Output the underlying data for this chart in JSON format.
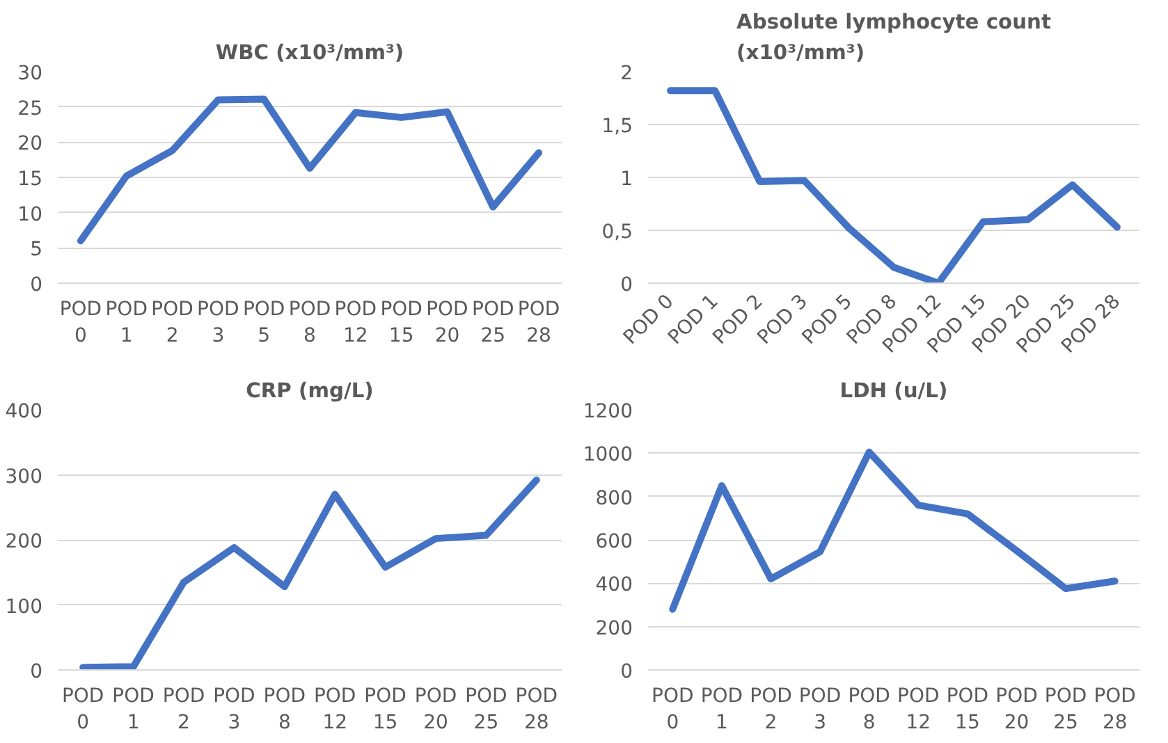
{
  "chart_data": [
    {
      "type": "line",
      "title": "WBC (x10³/mm³)",
      "categories": [
        "POD 0",
        "POD 1",
        "POD 2",
        "POD 3",
        "POD 5",
        "POD 8",
        "POD 12",
        "POD 15",
        "POD 20",
        "POD 25",
        "POD 28"
      ],
      "series": [
        {
          "color": "#4472c4",
          "values": [
            6,
            15.2,
            18.8,
            26,
            26.1,
            16.3,
            24.2,
            23.5,
            24.3,
            10.8,
            18.5
          ]
        }
      ],
      "ylim": [
        0,
        30
      ],
      "yticks": [
        0,
        5,
        10,
        15,
        20,
        25,
        30
      ],
      "grid": "y",
      "marker": "none",
      "line_style": "solid"
    },
    {
      "type": "line",
      "title": "Absolute lymphocyte count (x10³/mm³)",
      "categories": [
        "POD 0",
        "POD 1",
        "POD 2",
        "POD 3",
        "POD 5",
        "POD 8",
        "POD 12",
        "POD 15",
        "POD 20",
        "POD 25",
        "POD 28"
      ],
      "series": [
        {
          "color": "#4472c4",
          "values": [
            1.82,
            1.82,
            0.96,
            0.97,
            0.52,
            0.15,
            0,
            0.58,
            0.6,
            0.93,
            0.53
          ]
        }
      ],
      "ylim": [
        0,
        2
      ],
      "yticks": [
        0,
        {
          "value": 0.5,
          "label": "0,5"
        },
        1,
        {
          "value": 1.5,
          "label": "1,5"
        },
        2
      ],
      "grid": "y",
      "marker": "none",
      "line_style": "solid"
    },
    {
      "type": "line",
      "title": "CRP (mg/L)",
      "categories": [
        "POD 0",
        "POD 1",
        "POD 2",
        "POD 3",
        "POD 8",
        "POD 12",
        "POD 15",
        "POD 20",
        "POD 25",
        "POD 28"
      ],
      "series": [
        {
          "color": "#4472c4",
          "values": [
            4,
            5,
            135,
            188,
            128,
            270,
            158,
            202,
            207,
            292
          ]
        }
      ],
      "ylim": [
        0,
        400
      ],
      "yticks": [
        0,
        100,
        200,
        300,
        400
      ],
      "grid": "y",
      "marker": "none",
      "line_style": "solid"
    },
    {
      "type": "line",
      "title": "LDH (u/L)",
      "categories": [
        "POD 0",
        "POD 1",
        "POD 2",
        "POD 3",
        "POD 8",
        "POD 12",
        "POD 15",
        "POD 20",
        "POD 25",
        "POD 28"
      ],
      "series": [
        {
          "color": "#4472c4",
          "values": [
            280,
            850,
            420,
            545,
            1005,
            760,
            720,
            550,
            375,
            410
          ]
        }
      ],
      "ylim": [
        0,
        1200
      ],
      "yticks": [
        0,
        200,
        400,
        600,
        800,
        1000,
        1200
      ],
      "grid": "y",
      "marker": "none",
      "line_style": "solid"
    }
  ]
}
